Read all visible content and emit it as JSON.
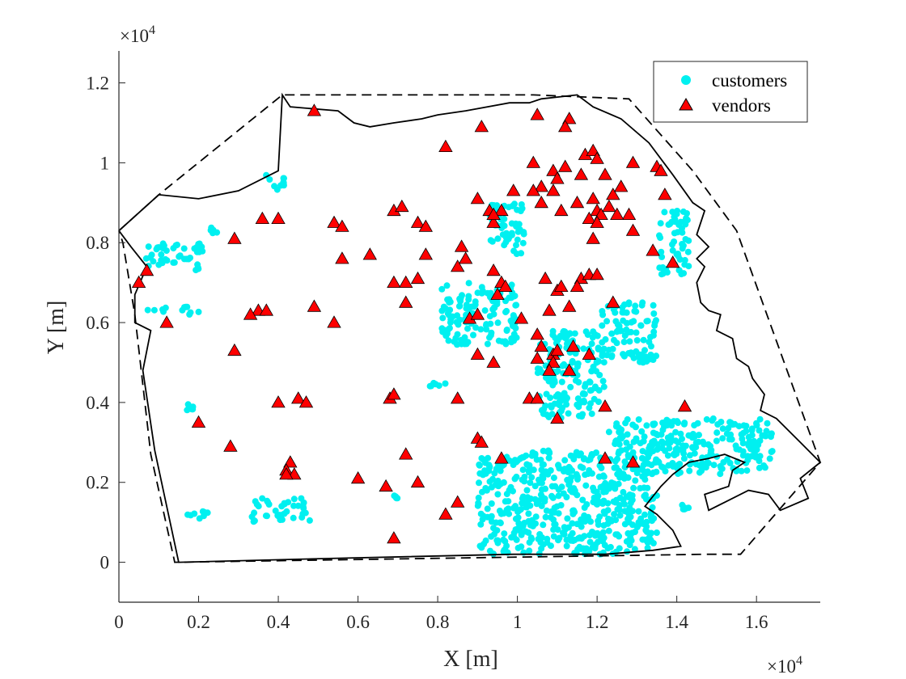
{
  "chart_data": {
    "type": "scatter",
    "xlabel": "X [m]",
    "ylabel": "Y [m]",
    "x_exponent_label": "×10",
    "x_exponent_power": "4",
    "y_exponent_label": "×10",
    "y_exponent_power": "4",
    "xlim": [
      0,
      17600
    ],
    "ylim": [
      -1000,
      12800
    ],
    "x_ticks": [
      0,
      2000,
      4000,
      6000,
      8000,
      10000,
      12000,
      14000,
      16000
    ],
    "x_tick_labels": [
      "0",
      "0.2",
      "0.4",
      "0.6",
      "0.8",
      "1",
      "1.2",
      "1.4",
      "1.6"
    ],
    "y_ticks": [
      0,
      2000,
      4000,
      6000,
      8000,
      10000,
      12000
    ],
    "y_tick_labels": [
      "0",
      "0.2",
      "0.4",
      "0.6",
      "0.8",
      "1",
      "1.2"
    ],
    "grid": false,
    "legend_position": "top-right",
    "colors": {
      "customers": "#00f0f0",
      "vendors": "#ff0000",
      "vendor_edge": "#000000",
      "boundary": "#000000"
    },
    "legend": [
      {
        "name": "customers",
        "marker": "circle"
      },
      {
        "name": "vendors",
        "marker": "triangle"
      }
    ],
    "customer_clusters": [
      {
        "x": [
          600,
          2100
        ],
        "y": [
          7300,
          8000
        ]
      },
      {
        "x": [
          700,
          2100
        ],
        "y": [
          6200,
          6400
        ]
      },
      {
        "x": [
          2300,
          2500
        ],
        "y": [
          8200,
          8400
        ]
      },
      {
        "x": [
          3600,
          4200
        ],
        "y": [
          9300,
          9700
        ]
      },
      {
        "x": [
          3300,
          4800
        ],
        "y": [
          1000,
          1600
        ]
      },
      {
        "x": [
          1700,
          2300
        ],
        "y": [
          1000,
          1300
        ]
      },
      {
        "x": [
          1700,
          2100
        ],
        "y": [
          3800,
          4000
        ]
      },
      {
        "x": [
          9300,
          10200
        ],
        "y": [
          7700,
          9000
        ]
      },
      {
        "x": [
          8100,
          10000
        ],
        "y": [
          5400,
          7000
        ]
      },
      {
        "x": [
          10500,
          12200
        ],
        "y": [
          3600,
          5800
        ]
      },
      {
        "x": [
          12100,
          13500
        ],
        "y": [
          5000,
          6500
        ]
      },
      {
        "x": [
          9000,
          13500
        ],
        "y": [
          200,
          2800
        ]
      },
      {
        "x": [
          12300,
          16400
        ],
        "y": [
          2200,
          3600
        ]
      },
      {
        "x": [
          13500,
          14300
        ],
        "y": [
          7200,
          8800
        ]
      },
      {
        "x": [
          7800,
          8200
        ],
        "y": [
          4400,
          4500
        ]
      },
      {
        "x": [
          6900,
          7000
        ],
        "y": [
          1600,
          1700
        ]
      },
      {
        "x": [
          14000,
          14300
        ],
        "y": [
          1300,
          1500
        ]
      }
    ],
    "vendors": [
      [
        4900,
        11300
      ],
      [
        9100,
        10900
      ],
      [
        10500,
        11200
      ],
      [
        11300,
        11100
      ],
      [
        11200,
        10900
      ],
      [
        8200,
        10400
      ],
      [
        10400,
        10000
      ],
      [
        11700,
        10200
      ],
      [
        11900,
        10300
      ],
      [
        12000,
        10100
      ],
      [
        11600,
        9700
      ],
      [
        10900,
        9800
      ],
      [
        11000,
        9600
      ],
      [
        10600,
        9400
      ],
      [
        10400,
        9300
      ],
      [
        10900,
        9300
      ],
      [
        11200,
        9900
      ],
      [
        12200,
        9700
      ],
      [
        12900,
        10000
      ],
      [
        13500,
        9900
      ],
      [
        13600,
        9800
      ],
      [
        13700,
        9200
      ],
      [
        9000,
        9100
      ],
      [
        9900,
        9300
      ],
      [
        10600,
        9000
      ],
      [
        11100,
        8800
      ],
      [
        11500,
        9000
      ],
      [
        11900,
        9100
      ],
      [
        12000,
        8800
      ],
      [
        12100,
        8700
      ],
      [
        12300,
        8900
      ],
      [
        12400,
        9200
      ],
      [
        12600,
        9400
      ],
      [
        12800,
        8700
      ],
      [
        12500,
        8700
      ],
      [
        11800,
        8600
      ],
      [
        12000,
        8500
      ],
      [
        12900,
        8300
      ],
      [
        11900,
        8100
      ],
      [
        9300,
        8800
      ],
      [
        9400,
        8500
      ],
      [
        9600,
        8800
      ],
      [
        9400,
        8700
      ],
      [
        3600,
        8600
      ],
      [
        4000,
        8600
      ],
      [
        5400,
        8500
      ],
      [
        5600,
        8400
      ],
      [
        6900,
        8800
      ],
      [
        7100,
        8900
      ],
      [
        7500,
        8500
      ],
      [
        7700,
        8400
      ],
      [
        2900,
        8100
      ],
      [
        8600,
        7900
      ],
      [
        7700,
        7700
      ],
      [
        6300,
        7700
      ],
      [
        8700,
        7600
      ],
      [
        8500,
        7400
      ],
      [
        9400,
        7300
      ],
      [
        5600,
        7600
      ],
      [
        700,
        7300
      ],
      [
        500,
        7000
      ],
      [
        6900,
        7000
      ],
      [
        7200,
        7000
      ],
      [
        7500,
        7100
      ],
      [
        9600,
        7000
      ],
      [
        9700,
        6900
      ],
      [
        9500,
        6700
      ],
      [
        10700,
        7100
      ],
      [
        11000,
        6800
      ],
      [
        11100,
        6900
      ],
      [
        11600,
        7100
      ],
      [
        11800,
        7200
      ],
      [
        12000,
        7200
      ],
      [
        11500,
        6900
      ],
      [
        13400,
        7800
      ],
      [
        13900,
        7500
      ],
      [
        10100,
        6100
      ],
      [
        10800,
        6300
      ],
      [
        11300,
        6400
      ],
      [
        12400,
        6500
      ],
      [
        3500,
        6300
      ],
      [
        3700,
        6300
      ],
      [
        3300,
        6200
      ],
      [
        4900,
        6400
      ],
      [
        5400,
        6000
      ],
      [
        8800,
        6100
      ],
      [
        9000,
        6200
      ],
      [
        1200,
        6000
      ],
      [
        7200,
        6500
      ],
      [
        10500,
        5700
      ],
      [
        10600,
        5400
      ],
      [
        10900,
        5200
      ],
      [
        11000,
        5300
      ],
      [
        11400,
        5400
      ],
      [
        11800,
        5200
      ],
      [
        10500,
        5100
      ],
      [
        10900,
        5000
      ],
      [
        10800,
        4800
      ],
      [
        11300,
        4800
      ],
      [
        9000,
        5200
      ],
      [
        9400,
        5000
      ],
      [
        2900,
        5300
      ],
      [
        4000,
        4000
      ],
      [
        4500,
        4100
      ],
      [
        4700,
        4000
      ],
      [
        6800,
        4100
      ],
      [
        6900,
        4200
      ],
      [
        8500,
        4100
      ],
      [
        10300,
        4100
      ],
      [
        10500,
        4100
      ],
      [
        11000,
        3600
      ],
      [
        12200,
        3900
      ],
      [
        14200,
        3900
      ],
      [
        2000,
        3500
      ],
      [
        2800,
        2900
      ],
      [
        9000,
        3100
      ],
      [
        9100,
        3000
      ],
      [
        7200,
        2700
      ],
      [
        9600,
        2600
      ],
      [
        12200,
        2600
      ],
      [
        12900,
        2500
      ],
      [
        4300,
        2500
      ],
      [
        4200,
        2300
      ],
      [
        4400,
        2200
      ],
      [
        4200,
        2200
      ],
      [
        6000,
        2100
      ],
      [
        6700,
        1900
      ],
      [
        7500,
        2000
      ],
      [
        8500,
        1500
      ],
      [
        8200,
        1200
      ],
      [
        6900,
        600
      ]
    ],
    "convex_hull": [
      [
        0,
        8300
      ],
      [
        1000,
        9200
      ],
      [
        4100,
        11700
      ],
      [
        10400,
        11700
      ],
      [
        12800,
        11600
      ],
      [
        14400,
        9800
      ],
      [
        15500,
        8300
      ],
      [
        17600,
        2500
      ],
      [
        15600,
        200
      ],
      [
        14700,
        200
      ],
      [
        1400,
        0
      ],
      [
        800,
        2700
      ],
      [
        400,
        6200
      ],
      [
        100,
        8000
      ],
      [
        0,
        8300
      ]
    ],
    "boundary": [
      [
        0,
        8300
      ],
      [
        1000,
        9200
      ],
      [
        2000,
        9100
      ],
      [
        3000,
        9300
      ],
      [
        4000,
        9800
      ],
      [
        4100,
        11700
      ],
      [
        4300,
        11400
      ],
      [
        5500,
        11300
      ],
      [
        5900,
        11000
      ],
      [
        6300,
        10900
      ],
      [
        6900,
        11000
      ],
      [
        7600,
        11100
      ],
      [
        8000,
        11200
      ],
      [
        8700,
        11300
      ],
      [
        9800,
        11500
      ],
      [
        10300,
        11500
      ],
      [
        10600,
        11600
      ],
      [
        11500,
        11700
      ],
      [
        11900,
        11400
      ],
      [
        12600,
        11100
      ],
      [
        13300,
        10500
      ],
      [
        13900,
        9700
      ],
      [
        14400,
        9000
      ],
      [
        14700,
        8800
      ],
      [
        14500,
        8200
      ],
      [
        14800,
        7900
      ],
      [
        14500,
        7600
      ],
      [
        14700,
        7400
      ],
      [
        14500,
        7000
      ],
      [
        14600,
        6500
      ],
      [
        14800,
        6300
      ],
      [
        15100,
        6200
      ],
      [
        15000,
        5800
      ],
      [
        15400,
        5600
      ],
      [
        15500,
        5100
      ],
      [
        15800,
        4900
      ],
      [
        15900,
        4600
      ],
      [
        16200,
        4200
      ],
      [
        16100,
        3800
      ],
      [
        16500,
        3600
      ],
      [
        16800,
        3300
      ],
      [
        17100,
        3000
      ],
      [
        17600,
        2500
      ],
      [
        17100,
        2100
      ],
      [
        17300,
        1600
      ],
      [
        16600,
        1300
      ],
      [
        16300,
        1700
      ],
      [
        15800,
        1800
      ],
      [
        15200,
        1500
      ],
      [
        14800,
        1300
      ],
      [
        14700,
        1700
      ],
      [
        15300,
        1900
      ],
      [
        15400,
        2300
      ],
      [
        15700,
        2500
      ],
      [
        15200,
        2700
      ],
      [
        14800,
        2600
      ],
      [
        14300,
        2500
      ],
      [
        13900,
        2200
      ],
      [
        13600,
        1900
      ],
      [
        13200,
        1400
      ],
      [
        13500,
        1200
      ],
      [
        13900,
        800
      ],
      [
        14100,
        400
      ],
      [
        13400,
        300
      ],
      [
        12200,
        200
      ],
      [
        9900,
        200
      ],
      [
        5500,
        100
      ],
      [
        1500,
        0
      ],
      [
        900,
        2800
      ],
      [
        600,
        4800
      ],
      [
        800,
        5800
      ],
      [
        400,
        6000
      ],
      [
        400,
        6700
      ],
      [
        700,
        7400
      ],
      [
        300,
        7900
      ],
      [
        0,
        8300
      ]
    ]
  }
}
